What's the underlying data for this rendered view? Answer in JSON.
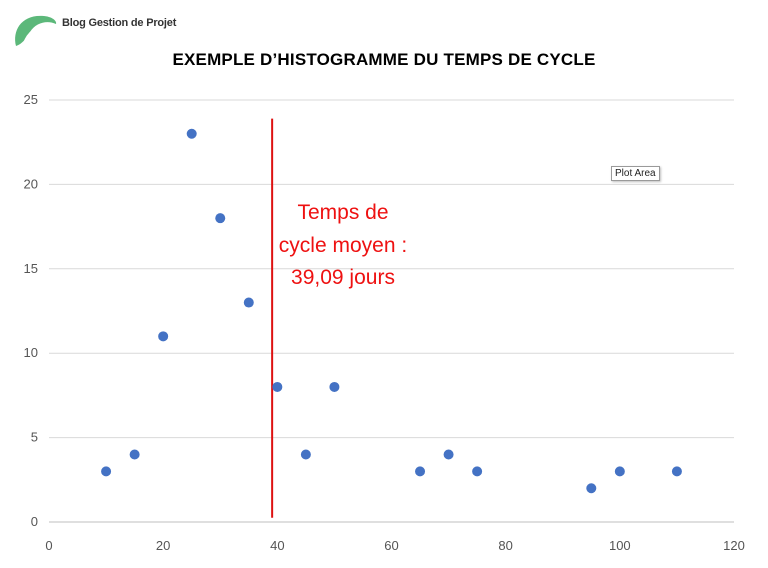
{
  "brand": {
    "name": "Blog Gestion de Projet",
    "logo_icon": "leaf-logo-icon",
    "logo_color": "#5cb87a"
  },
  "tooltip": {
    "label": "Plot Area"
  },
  "chart_data": {
    "type": "scatter",
    "title": "EXEMPLE D’HISTOGRAMME DU TEMPS DE CYCLE",
    "xlim": [
      0,
      120
    ],
    "ylim": [
      0,
      25
    ],
    "x_ticks": [
      0,
      20,
      40,
      60,
      80,
      100,
      120
    ],
    "y_ticks": [
      0,
      5,
      10,
      15,
      20,
      25
    ],
    "grid": "horizontal",
    "legend": "none",
    "series": [
      {
        "color": "#4472c4",
        "points": [
          {
            "x": 10,
            "y": 3
          },
          {
            "x": 15,
            "y": 4
          },
          {
            "x": 20,
            "y": 11
          },
          {
            "x": 25,
            "y": 23
          },
          {
            "x": 30,
            "y": 18
          },
          {
            "x": 35,
            "y": 13
          },
          {
            "x": 40,
            "y": 8
          },
          {
            "x": 45,
            "y": 4
          },
          {
            "x": 50,
            "y": 8
          },
          {
            "x": 65,
            "y": 3
          },
          {
            "x": 70,
            "y": 4
          },
          {
            "x": 75,
            "y": 3
          },
          {
            "x": 95,
            "y": 2
          },
          {
            "x": 100,
            "y": 3
          },
          {
            "x": 110,
            "y": 3
          }
        ]
      }
    ],
    "reference_line": {
      "x": 39.09,
      "color": "#dd1111",
      "label_lines": [
        "Temps de",
        "cycle moyen :",
        "39,09 jours"
      ]
    }
  }
}
